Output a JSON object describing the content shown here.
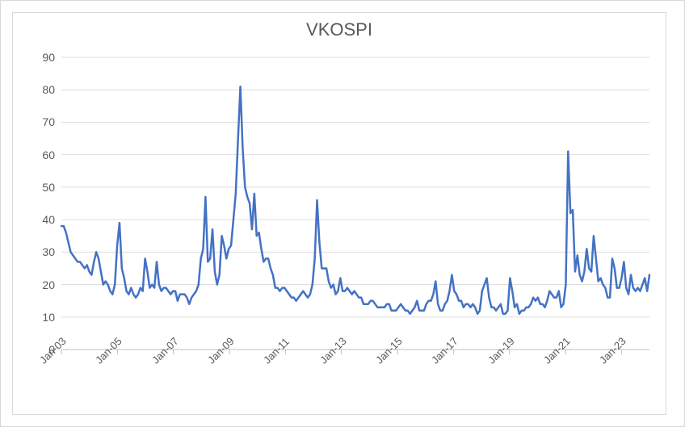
{
  "chart": {
    "type": "line",
    "title": "VKOSPI",
    "title_fontsize": 22,
    "title_color": "#595959",
    "background_color": "#ffffff",
    "frame_border_color": "#d9d9d9",
    "grid_color": "#dedede",
    "axis_color": "#bfbfbf",
    "label_color": "#595959",
    "label_fontsize": 14,
    "x_label_fontsize": 13,
    "ylim": [
      0,
      90
    ],
    "ytick_step": 10,
    "yticks": [
      0,
      10,
      20,
      30,
      40,
      50,
      60,
      70,
      80,
      90
    ],
    "x_start_year": 2003,
    "x_end_year": 2024,
    "xticks": [
      "Jan-03",
      "Jan-05",
      "Jan-07",
      "Jan-09",
      "Jan-11",
      "Jan-13",
      "Jan-15",
      "Jan-17",
      "Jan-19",
      "Jan-21",
      "Jan-23"
    ],
    "xtick_years": [
      2003,
      2005,
      2007,
      2009,
      2011,
      2013,
      2015,
      2017,
      2019,
      2021,
      2023
    ],
    "x_label_rotation_deg": -45,
    "series": {
      "name": "VKOSPI",
      "color": "#4472c4",
      "line_width": 2.5,
      "values": [
        38,
        38,
        36,
        33,
        30,
        29,
        28,
        27,
        27,
        26,
        25,
        26,
        24,
        23,
        27,
        30,
        28,
        24,
        20,
        21,
        20,
        18,
        17,
        20,
        32,
        39,
        25,
        22,
        18,
        17,
        19,
        17,
        16,
        17,
        19,
        18,
        28,
        24,
        19,
        20,
        19,
        27,
        20,
        18,
        19,
        19,
        18,
        17,
        18,
        18,
        15,
        17,
        17,
        17,
        16,
        14,
        16,
        17,
        18,
        20,
        28,
        31,
        47,
        27,
        28,
        37,
        24,
        20,
        23,
        35,
        32,
        28,
        31,
        32,
        40,
        48,
        65,
        81,
        62,
        50,
        47,
        45,
        37,
        48,
        35,
        36,
        31,
        27,
        28,
        28,
        25,
        23,
        19,
        19,
        18,
        19,
        19,
        18,
        17,
        16,
        16,
        15,
        16,
        17,
        18,
        17,
        16,
        17,
        20,
        28,
        46,
        33,
        25,
        25,
        25,
        21,
        19,
        20,
        17,
        18,
        22,
        18,
        18,
        19,
        18,
        17,
        18,
        17,
        16,
        16,
        14,
        14,
        14,
        15,
        15,
        14,
        13,
        13,
        13,
        13,
        14,
        14,
        12,
        12,
        12,
        13,
        14,
        13,
        12,
        12,
        11,
        12,
        13,
        15,
        12,
        12,
        12,
        14,
        15,
        15,
        17,
        21,
        14,
        12,
        12,
        14,
        15,
        18,
        23,
        18,
        17,
        15,
        15,
        13,
        14,
        14,
        13,
        14,
        13,
        11,
        12,
        18,
        20,
        22,
        16,
        13,
        13,
        12,
        13,
        14,
        11,
        11,
        12,
        22,
        18,
        13,
        14,
        11,
        12,
        12,
        13,
        13,
        14,
        16,
        15,
        16,
        14,
        14,
        13,
        15,
        18,
        17,
        16,
        16,
        18,
        13,
        14,
        20,
        61,
        42,
        43,
        24,
        29,
        23,
        21,
        24,
        31,
        25,
        24,
        35,
        28,
        21,
        22,
        20,
        19,
        16,
        16,
        28,
        25,
        19,
        19,
        22,
        27,
        19,
        17,
        23,
        19,
        18,
        19,
        18,
        20,
        22,
        18,
        23
      ]
    }
  }
}
